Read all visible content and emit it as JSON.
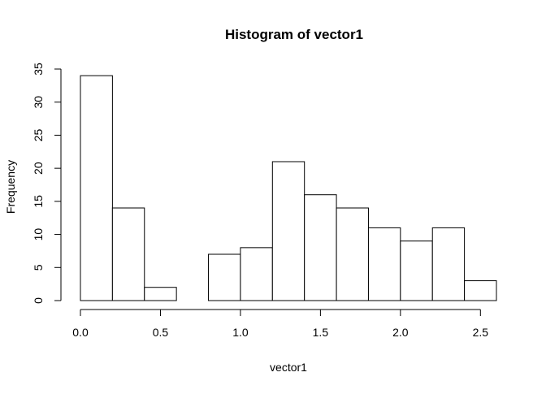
{
  "chart_data": {
    "type": "bar",
    "title": "Histogram of vector1",
    "xlabel": "vector1",
    "ylabel": "Frequency",
    "bins": [
      {
        "start": 0.0,
        "end": 0.2,
        "count": 34
      },
      {
        "start": 0.2,
        "end": 0.4,
        "count": 14
      },
      {
        "start": 0.4,
        "end": 0.6,
        "count": 2
      },
      {
        "start": 0.6,
        "end": 0.8,
        "count": 0
      },
      {
        "start": 0.8,
        "end": 1.0,
        "count": 7
      },
      {
        "start": 1.0,
        "end": 1.2,
        "count": 8
      },
      {
        "start": 1.2,
        "end": 1.4,
        "count": 21
      },
      {
        "start": 1.4,
        "end": 1.6,
        "count": 16
      },
      {
        "start": 1.6,
        "end": 1.8,
        "count": 14
      },
      {
        "start": 1.8,
        "end": 2.0,
        "count": 11
      },
      {
        "start": 2.0,
        "end": 2.2,
        "count": 9
      },
      {
        "start": 2.2,
        "end": 2.4,
        "count": 11
      },
      {
        "start": 2.4,
        "end": 2.6,
        "count": 3
      }
    ],
    "xlim": [
      0,
      2.6
    ],
    "ylim": [
      0,
      35
    ],
    "x_ticks": [
      "0.0",
      "0.5",
      "1.0",
      "1.5",
      "2.0",
      "2.5"
    ],
    "y_ticks": [
      "0",
      "5",
      "10",
      "15",
      "20",
      "25",
      "30",
      "35"
    ],
    "grid": false,
    "bar_fill": "#ffffff",
    "bar_stroke": "#000000"
  }
}
